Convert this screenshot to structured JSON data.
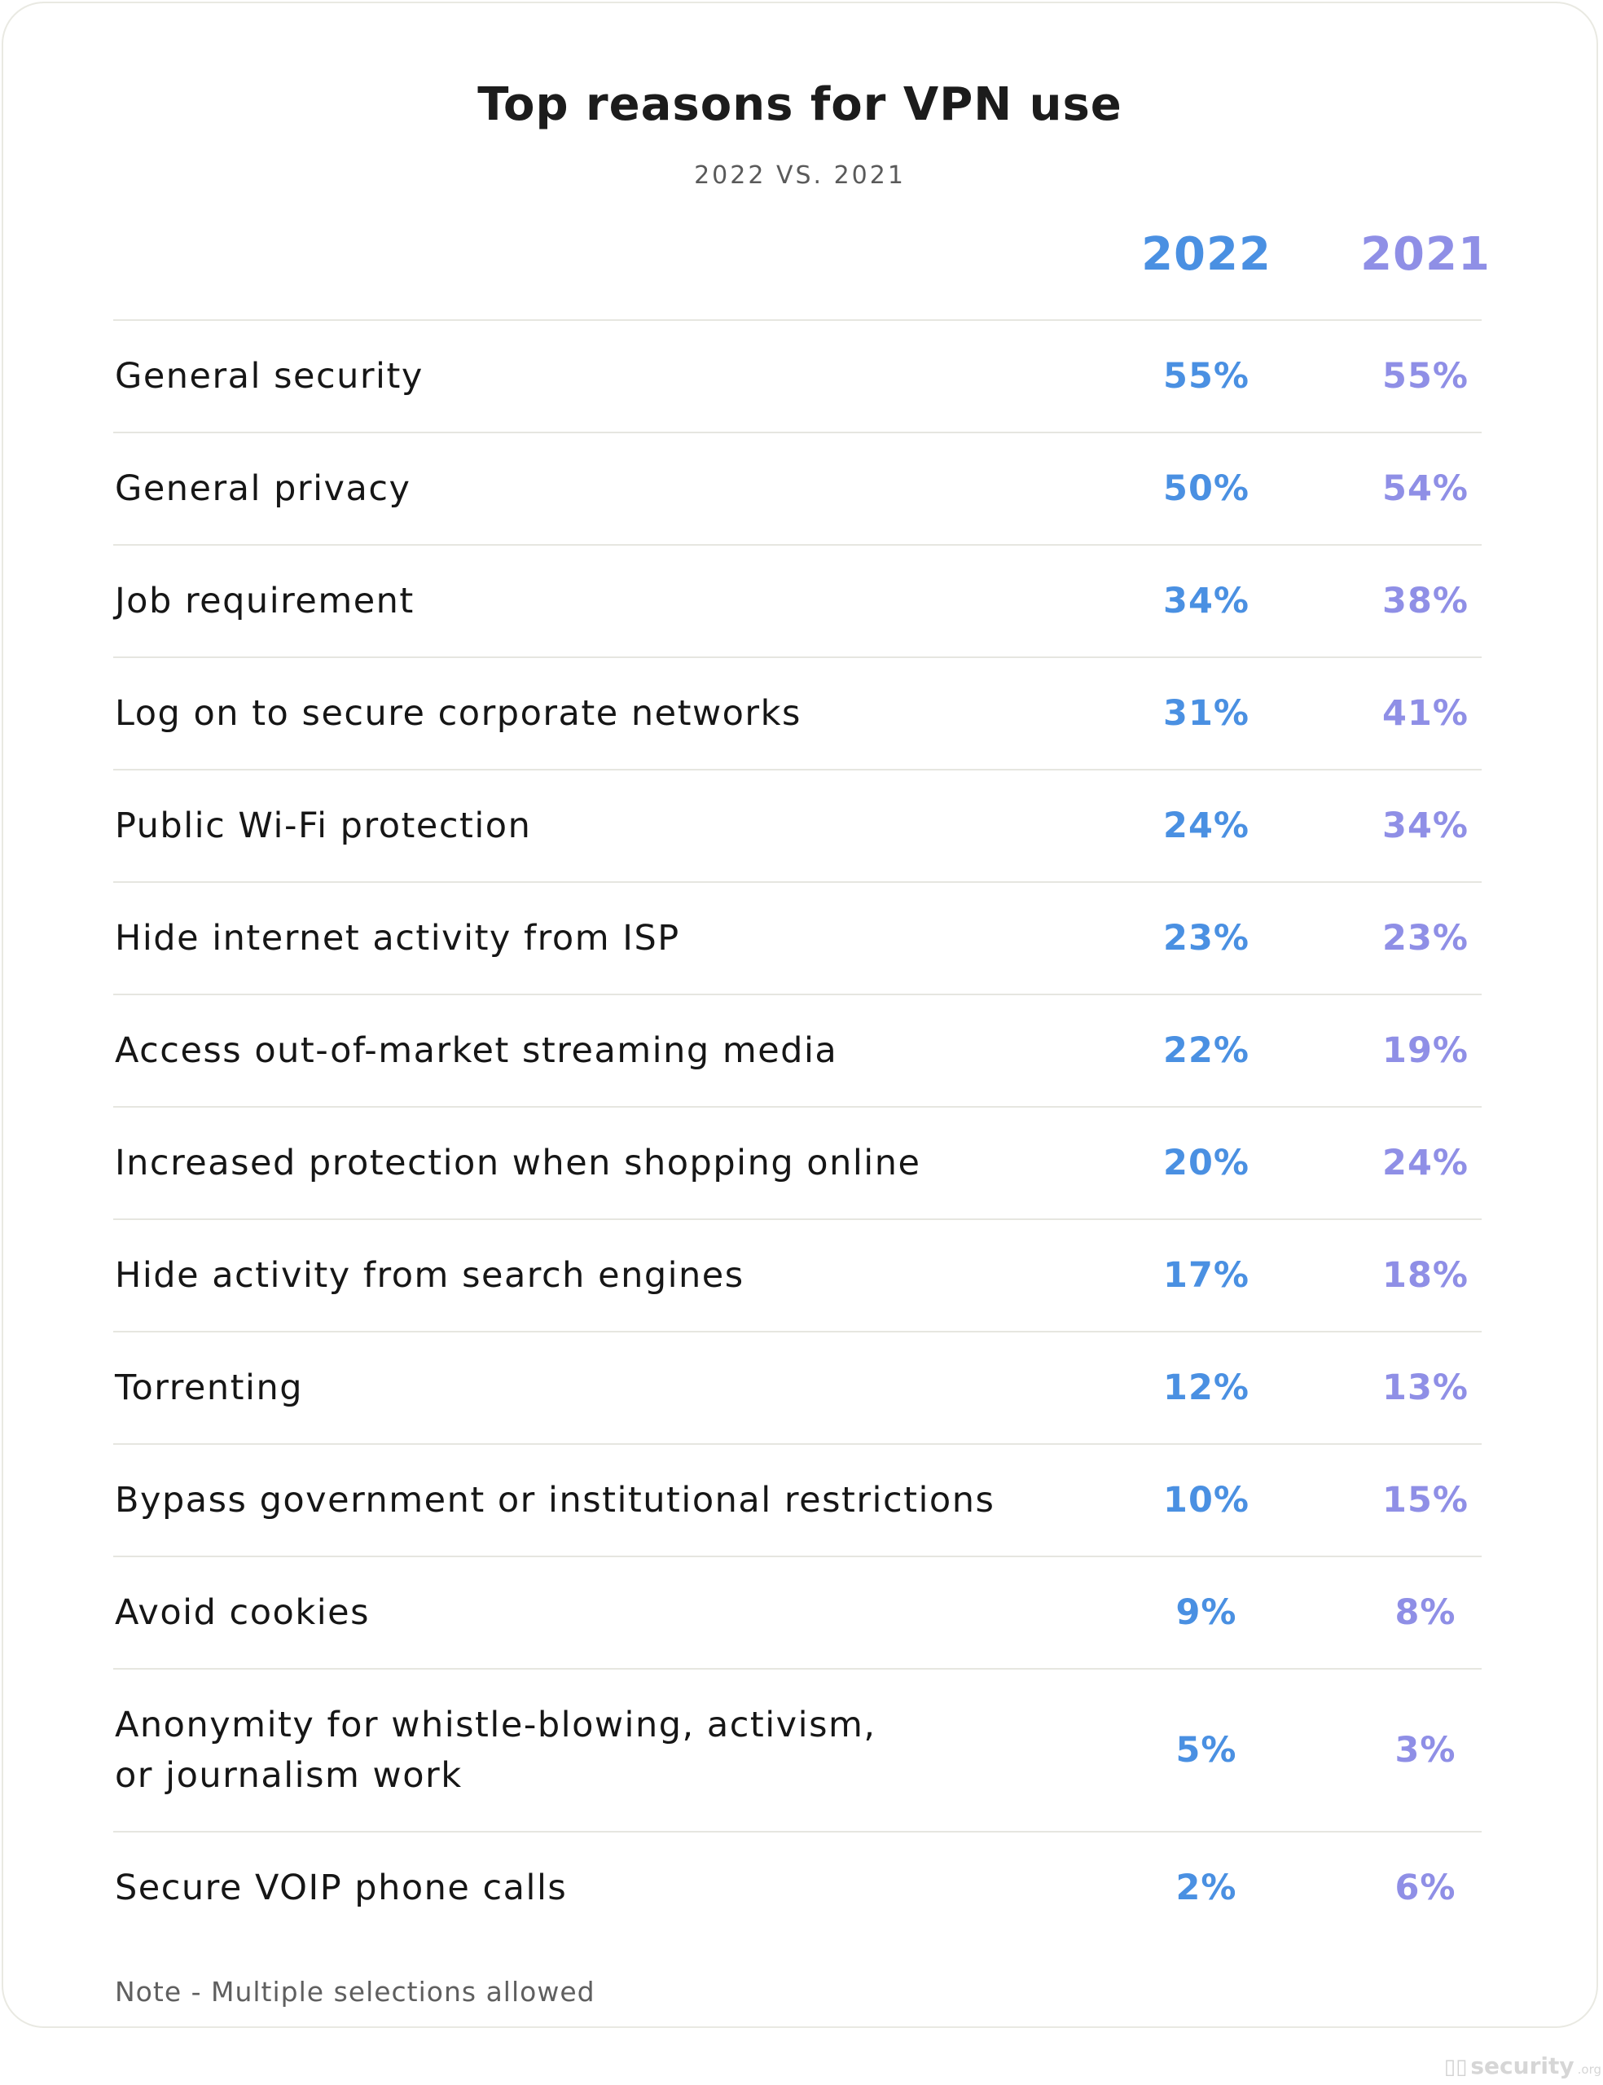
{
  "chart_data": {
    "type": "table",
    "title": "Top reasons for VPN use",
    "subtitle": "2022 VS. 2021",
    "columns": [
      "2022",
      "2021"
    ],
    "series": [
      {
        "name": "2022",
        "color": "#4a90e2",
        "values": [
          55,
          50,
          34,
          31,
          24,
          23,
          22,
          20,
          17,
          12,
          10,
          9,
          5,
          2
        ]
      },
      {
        "name": "2021",
        "color": "#8f8fe6",
        "values": [
          55,
          54,
          38,
          41,
          34,
          23,
          19,
          24,
          18,
          13,
          15,
          8,
          3,
          6
        ]
      }
    ],
    "rows": [
      {
        "label": "General security",
        "v2022": "55%",
        "v2021": "55%"
      },
      {
        "label": "General privacy",
        "v2022": "50%",
        "v2021": "54%"
      },
      {
        "label": "Job requirement",
        "v2022": "34%",
        "v2021": "38%"
      },
      {
        "label": "Log on to secure corporate networks",
        "v2022": "31%",
        "v2021": "41%"
      },
      {
        "label": "Public Wi-Fi protection",
        "v2022": "24%",
        "v2021": "34%"
      },
      {
        "label": "Hide internet activity from ISP",
        "v2022": "23%",
        "v2021": "23%"
      },
      {
        "label": "Access out-of-market streaming media",
        "v2022": "22%",
        "v2021": "19%"
      },
      {
        "label": "Increased protection when shopping online",
        "v2022": "20%",
        "v2021": "24%"
      },
      {
        "label": "Hide activity from search engines",
        "v2022": "17%",
        "v2021": "18%"
      },
      {
        "label": "Torrenting",
        "v2022": "12%",
        "v2021": "13%"
      },
      {
        "label": "Bypass government or institutional restrictions",
        "v2022": "10%",
        "v2021": "15%"
      },
      {
        "label": "Avoid cookies",
        "v2022": "9%",
        "v2021": "8%"
      },
      {
        "label": "Anonymity for whistle-blowing, activism,",
        "label_line2": "or journalism work",
        "v2022": "5%",
        "v2021": "3%"
      },
      {
        "label": "Secure VOIP phone calls",
        "v2022": "2%",
        "v2021": "6%"
      }
    ],
    "note": "Note - Multiple selections allowed"
  },
  "brand": {
    "logo_text": "security",
    "logo_tld": ".org"
  },
  "colors": {
    "col_2022": "#4a90e2",
    "col_2021": "#8f8fe6",
    "text": "#161616",
    "rule": "#e6e6e0"
  }
}
